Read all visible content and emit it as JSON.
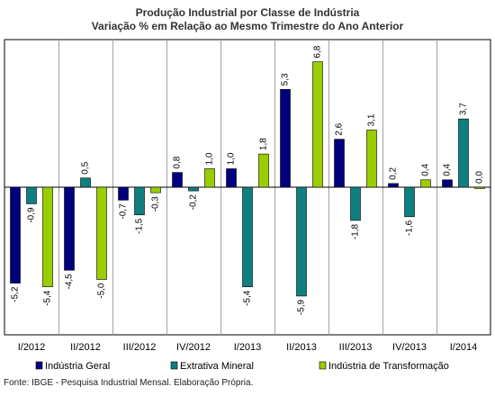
{
  "chart_data": {
    "type": "bar",
    "title": "Produção Industrial por Classe de Indústria",
    "subtitle": "Variação % em Relação ao Mesmo Trimestre do Ano Anterior",
    "categories": [
      "I/2012",
      "II/2012",
      "III/2012",
      "IV/2012",
      "I/2013",
      "II/2013",
      "III/2013",
      "IV/2013",
      "I/2014"
    ],
    "series": [
      {
        "name": "Indústria Geral",
        "color": "#00007f",
        "values": [
          -5.2,
          -4.5,
          -0.7,
          0.8,
          1.0,
          5.3,
          2.6,
          0.2,
          0.4
        ],
        "labels": [
          "-5,2",
          "-4,5",
          "-0,7",
          "0,8",
          "1,0",
          "5,3",
          "2,6",
          "0,2",
          "0,4"
        ]
      },
      {
        "name": "Extrativa Mineral",
        "color": "#0f7f7f",
        "values": [
          -0.9,
          0.5,
          -1.5,
          -0.2,
          -5.4,
          -5.9,
          -1.8,
          -1.6,
          3.7
        ],
        "labels": [
          "-0,9",
          "0,5",
          "-1,5",
          "-0,2",
          "-5,4",
          "-5,9",
          "-1,8",
          "-1,6",
          "3,7"
        ]
      },
      {
        "name": "Indústria de Transformação",
        "color": "#9acd00",
        "values": [
          -5.4,
          -5.0,
          -0.3,
          1.0,
          1.8,
          6.8,
          3.1,
          0.4,
          0.0
        ],
        "labels": [
          "-5,4",
          "-5,0",
          "-0,3",
          "1,0",
          "1,8",
          "6,8",
          "3,1",
          "0,4",
          "0,0"
        ]
      }
    ],
    "ylim": [
      -8.0,
      8.0
    ],
    "grid": "vertical",
    "legend_position": "bottom"
  },
  "source_note": "Fonte: IBGE - Pesquisa Industrial Mensal. Elaboração Própria."
}
